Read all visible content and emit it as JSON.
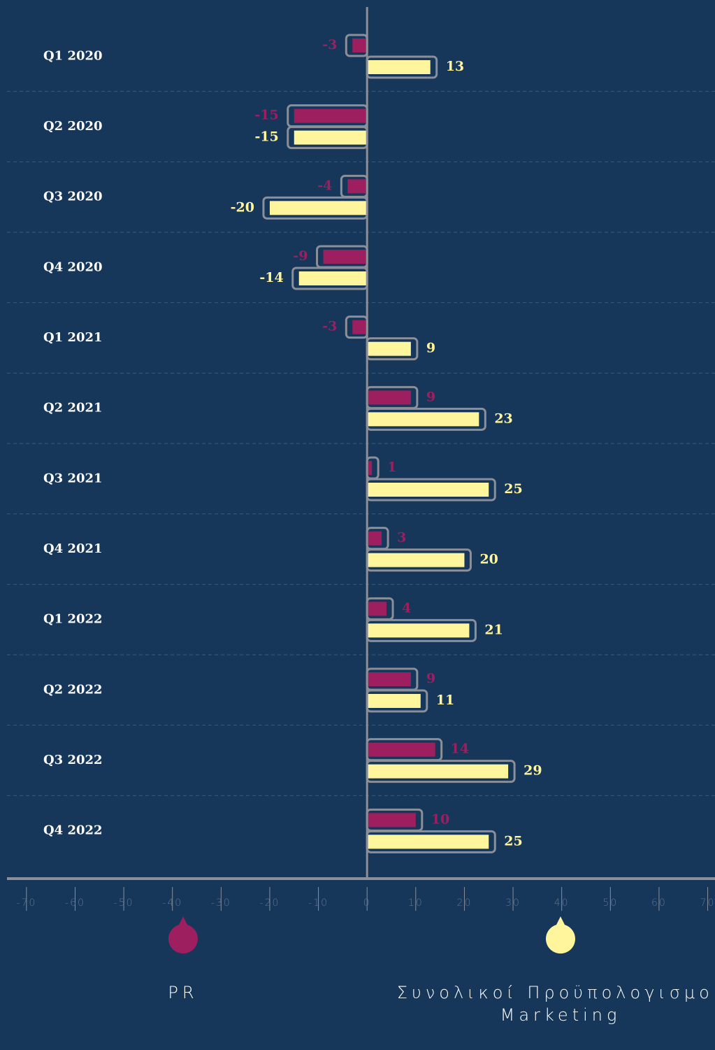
{
  "chart_data": {
    "type": "hbar",
    "categories": [
      "Q1 2020",
      "Q2 2020",
      "Q3 2020",
      "Q4 2020",
      "Q1 2021",
      "Q2 2021",
      "Q3 2021",
      "Q4 2021",
      "Q1 2022",
      "Q2 2022",
      "Q3 2022",
      "Q4 2022"
    ],
    "series": [
      {
        "name": "PR",
        "color": "#9e1f60",
        "values": [
          -3,
          -15,
          -4,
          -9,
          -3,
          9,
          1,
          3,
          4,
          9,
          14,
          10
        ]
      },
      {
        "name": "Συνολικοί Προϋπολογισμοί Marketing",
        "color": "#fff59d",
        "values": [
          13,
          -15,
          -20,
          -14,
          9,
          23,
          25,
          20,
          21,
          11,
          29,
          25
        ]
      }
    ],
    "xlim": [
      -74,
      71.5
    ],
    "xticks": [
      -70,
      -60,
      -50,
      -40,
      -30,
      -20,
      -10,
      0,
      10,
      20,
      30,
      40,
      50,
      60,
      70
    ],
    "grid": true,
    "legend": "bottom"
  }
}
